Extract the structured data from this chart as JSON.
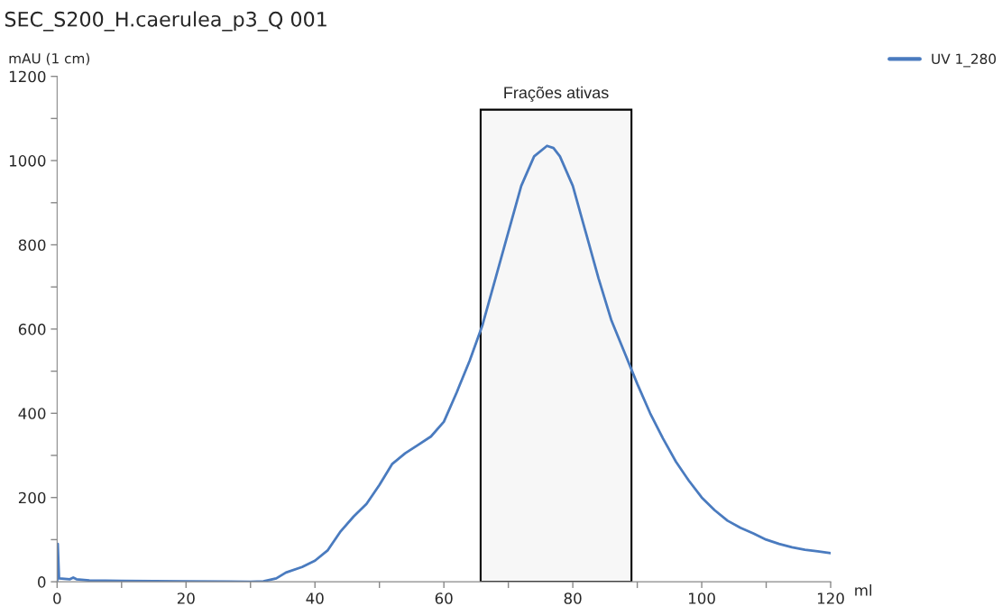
{
  "chart_data": {
    "type": "line",
    "title": "SEC_S200_H.caerulea_p3_Q 001",
    "xlabel": "ml",
    "ylabel": "mAU (1 cm)",
    "xlim": [
      0,
      120
    ],
    "ylim": [
      0,
      1200
    ],
    "xticks": [
      0,
      {
        "value": 10,
        "label": null
      },
      20,
      {
        "value": 30,
        "label": null
      },
      40,
      {
        "value": 50,
        "label": null
      },
      60,
      {
        "value": 70,
        "label": null
      },
      80,
      {
        "value": 90,
        "label": null
      },
      100,
      {
        "value": 110,
        "label": null
      },
      120
    ],
    "yticks": [
      0,
      {
        "value": 100,
        "label": null
      },
      200,
      {
        "value": 300,
        "label": null
      },
      400,
      {
        "value": 500,
        "label": null
      },
      600,
      {
        "value": 700,
        "label": null
      },
      800,
      {
        "value": 900,
        "label": null
      },
      1000,
      {
        "value": 1100,
        "label": null
      },
      1200
    ],
    "grid": false,
    "legend": "top right",
    "bands": [
      {
        "axis": "x",
        "from": 65.7,
        "to": 89.1,
        "label": "Frações ativas",
        "color": "#000000"
      }
    ],
    "series": [
      {
        "name": "UV 1_280",
        "color": "#4a7bbf",
        "x": [
          0,
          0.1,
          0.3,
          2,
          2.5,
          3,
          5,
          10,
          20,
          30,
          32,
          34,
          35.5,
          38,
          40,
          42,
          44,
          46,
          48,
          50,
          52,
          54,
          56,
          58,
          60,
          62,
          64,
          66,
          68,
          70,
          72,
          74,
          76,
          77,
          78,
          80,
          82,
          84,
          86,
          88,
          90,
          92,
          94,
          96,
          98,
          100,
          102,
          104,
          106,
          108,
          110,
          112,
          114,
          116,
          118,
          120
        ],
        "values": [
          0,
          90,
          8,
          6,
          10,
          6,
          3,
          2,
          1,
          0,
          1,
          8,
          22,
          35,
          50,
          75,
          120,
          155,
          185,
          230,
          280,
          305,
          325,
          345,
          380,
          450,
          525,
          610,
          720,
          830,
          940,
          1010,
          1035,
          1030,
          1010,
          940,
          830,
          720,
          620,
          545,
          470,
          400,
          340,
          285,
          240,
          200,
          170,
          145,
          128,
          115,
          100,
          90,
          82,
          76,
          72,
          68
        ]
      }
    ]
  }
}
